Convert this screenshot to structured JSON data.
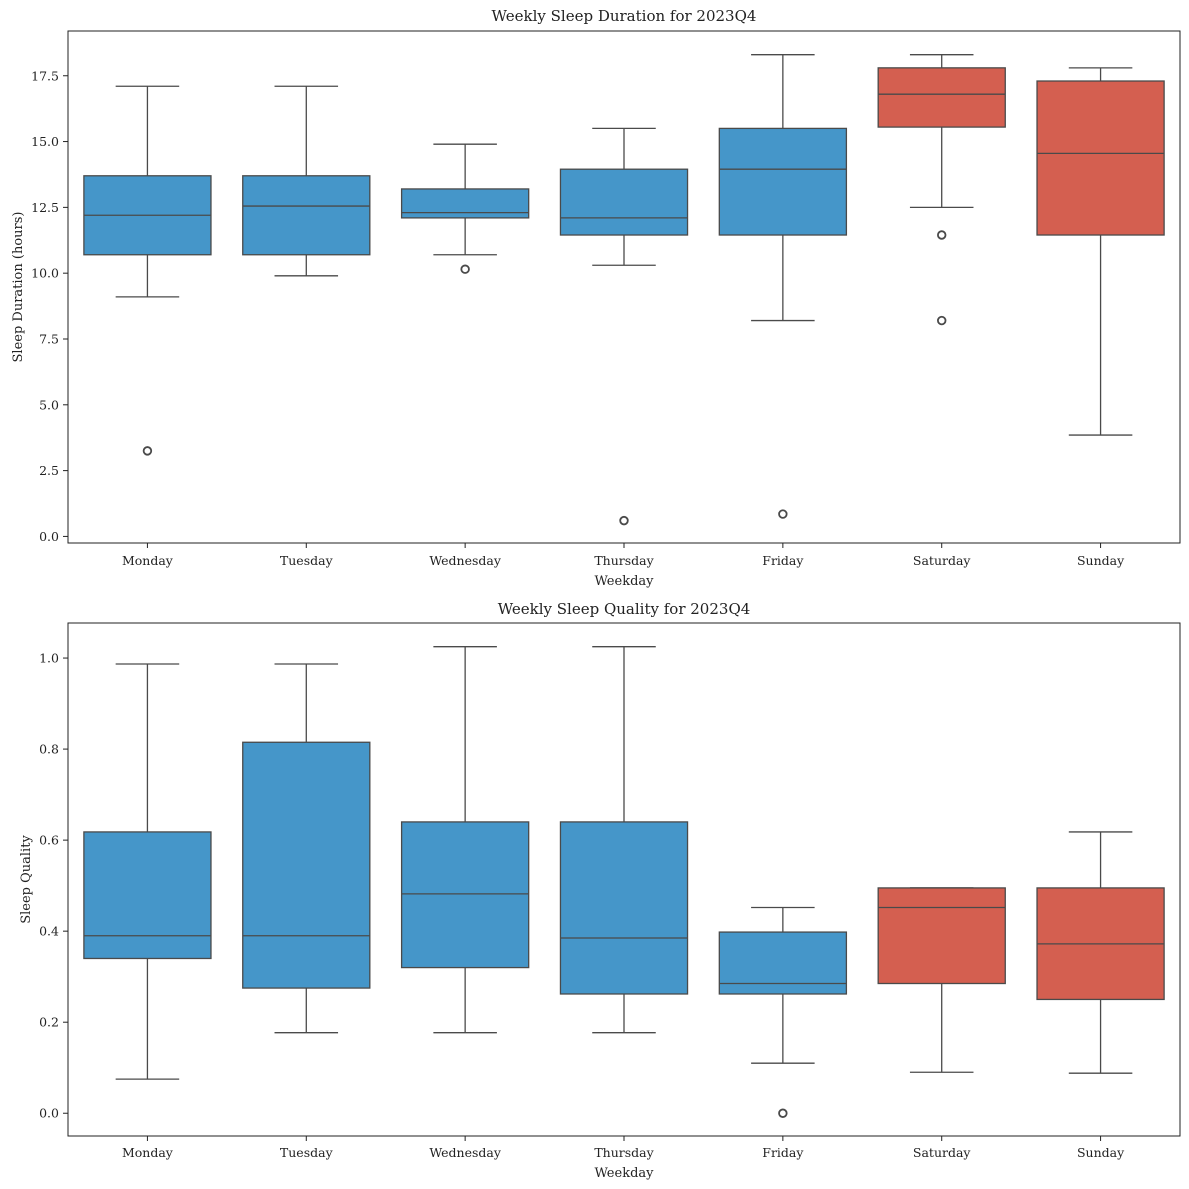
{
  "colors": {
    "weekday": "#4596c9",
    "weekend": "#d45f50",
    "line": "#4a4a4a"
  },
  "chart_data": [
    {
      "type": "box",
      "title": "Weekly Sleep Duration for 2023Q4",
      "xlabel": "Weekday",
      "ylabel": "Sleep Duration (hours)",
      "ylim": [
        -0.25,
        19.2
      ],
      "yticks": [
        0.0,
        2.5,
        5.0,
        7.5,
        10.0,
        12.5,
        15.0,
        17.5
      ],
      "ytick_labels": [
        "0.0",
        "2.5",
        "5.0",
        "7.5",
        "10.0",
        "12.5",
        "15.0",
        "17.5"
      ],
      "categories": [
        "Monday",
        "Tuesday",
        "Wednesday",
        "Thursday",
        "Friday",
        "Saturday",
        "Sunday"
      ],
      "boxes": [
        {
          "category": "Monday",
          "group": "weekday",
          "whislo": 9.1,
          "q1": 10.7,
          "med": 12.2,
          "q3": 13.7,
          "whishi": 17.1,
          "fliers": [
            3.25
          ]
        },
        {
          "category": "Tuesday",
          "group": "weekday",
          "whislo": 9.9,
          "q1": 10.7,
          "med": 12.55,
          "q3": 13.7,
          "whishi": 17.1,
          "fliers": []
        },
        {
          "category": "Wednesday",
          "group": "weekday",
          "whislo": 10.7,
          "q1": 12.1,
          "med": 12.3,
          "q3": 13.2,
          "whishi": 14.9,
          "fliers": [
            10.15
          ]
        },
        {
          "category": "Thursday",
          "group": "weekday",
          "whislo": 10.3,
          "q1": 11.45,
          "med": 12.1,
          "q3": 13.95,
          "whishi": 15.5,
          "fliers": [
            0.6
          ]
        },
        {
          "category": "Friday",
          "group": "weekday",
          "whislo": 8.2,
          "q1": 11.45,
          "med": 13.95,
          "q3": 15.5,
          "whishi": 18.3,
          "fliers": [
            0.85
          ]
        },
        {
          "category": "Saturday",
          "group": "weekend",
          "whislo": 12.5,
          "q1": 15.55,
          "med": 16.8,
          "q3": 17.8,
          "whishi": 18.3,
          "fliers": [
            11.45,
            8.2
          ]
        },
        {
          "category": "Sunday",
          "group": "weekend",
          "whislo": 3.85,
          "q1": 11.45,
          "med": 14.55,
          "q3": 17.3,
          "whishi": 17.8,
          "fliers": []
        }
      ]
    },
    {
      "type": "box",
      "title": "Weekly Sleep Quality for 2023Q4",
      "xlabel": "Weekday",
      "ylabel": "Sleep Quality",
      "ylim": [
        -0.05,
        1.077
      ],
      "yticks": [
        0.0,
        0.2,
        0.4,
        0.6,
        0.8,
        1.0
      ],
      "ytick_labels": [
        "0.0",
        "0.2",
        "0.4",
        "0.6",
        "0.8",
        "1.0"
      ],
      "categories": [
        "Monday",
        "Tuesday",
        "Wednesday",
        "Thursday",
        "Friday",
        "Saturday",
        "Sunday"
      ],
      "boxes": [
        {
          "category": "Monday",
          "group": "weekday",
          "whislo": 0.075,
          "q1": 0.34,
          "med": 0.39,
          "q3": 0.618,
          "whishi": 0.987,
          "fliers": []
        },
        {
          "category": "Tuesday",
          "group": "weekday",
          "whislo": 0.177,
          "q1": 0.275,
          "med": 0.39,
          "q3": 0.815,
          "whishi": 0.987,
          "fliers": []
        },
        {
          "category": "Wednesday",
          "group": "weekday",
          "whislo": 0.177,
          "q1": 0.32,
          "med": 0.482,
          "q3": 0.64,
          "whishi": 1.025,
          "fliers": []
        },
        {
          "category": "Thursday",
          "group": "weekday",
          "whislo": 0.177,
          "q1": 0.262,
          "med": 0.385,
          "q3": 0.64,
          "whishi": 1.025,
          "fliers": []
        },
        {
          "category": "Friday",
          "group": "weekday",
          "whislo": 0.11,
          "q1": 0.262,
          "med": 0.285,
          "q3": 0.398,
          "whishi": 0.452,
          "fliers": [
            0.0
          ]
        },
        {
          "category": "Saturday",
          "group": "weekend",
          "whislo": 0.09,
          "q1": 0.285,
          "med": 0.452,
          "q3": 0.495,
          "whishi": 0.495,
          "fliers": []
        },
        {
          "category": "Sunday",
          "group": "weekend",
          "whislo": 0.088,
          "q1": 0.25,
          "med": 0.372,
          "q3": 0.495,
          "whishi": 0.618,
          "fliers": []
        }
      ]
    }
  ]
}
